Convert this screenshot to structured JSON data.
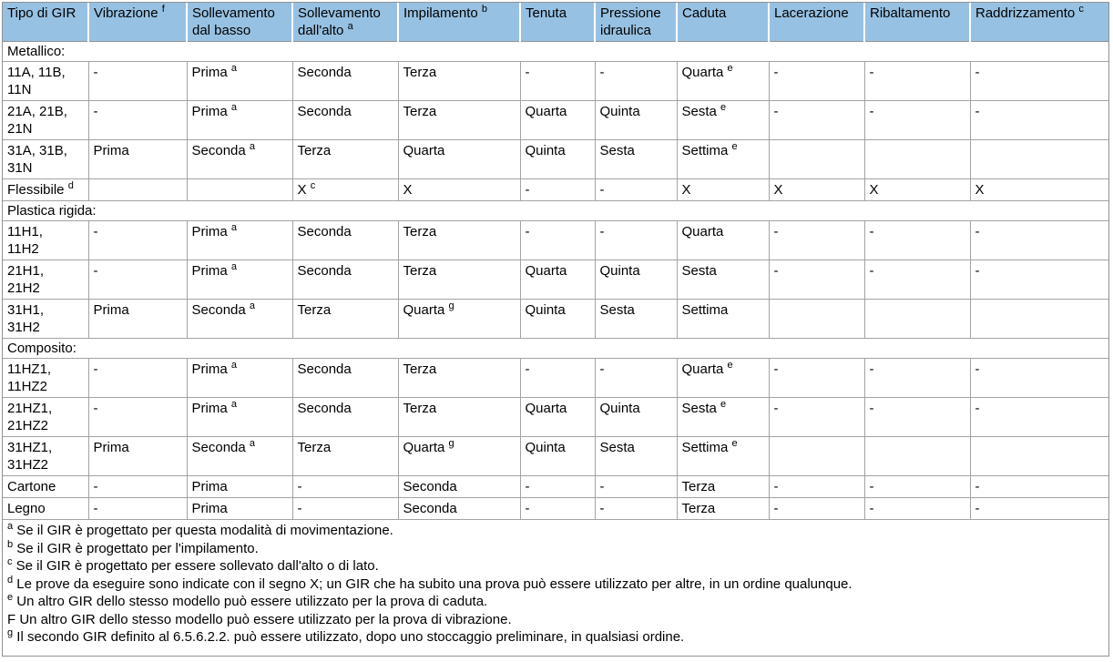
{
  "colors": {
    "header-bg": "#97c1e2",
    "border": "#a3a3a3",
    "frame": "#919191",
    "text": "#000000"
  },
  "table": {
    "columns": [
      {
        "label": "Tipo di GIR",
        "sup": ""
      },
      {
        "label": "Vibrazione",
        "sup": "f"
      },
      {
        "label": "Sollevamento dal basso",
        "sup": ""
      },
      {
        "label": "Sollevamento dall'alto",
        "sup": "a"
      },
      {
        "label": "Impilamento",
        "sup": "b"
      },
      {
        "label": "Tenuta",
        "sup": ""
      },
      {
        "label": "Pressione idraulica",
        "sup": ""
      },
      {
        "label": "Caduta",
        "sup": ""
      },
      {
        "label": "Lacerazione",
        "sup": ""
      },
      {
        "label": "Ribaltamento",
        "sup": ""
      },
      {
        "label": "Raddrizzamento",
        "sup": "c"
      }
    ],
    "rows": [
      {
        "type": "section",
        "label": "Metallico:"
      },
      {
        "type": "data",
        "cells": [
          "11A, 11B, 11N",
          "-",
          "Prima ^a",
          "Seconda",
          "Terza",
          "-",
          "-",
          "Quarta ^e",
          "-",
          "-",
          "-"
        ]
      },
      {
        "type": "data",
        "cells": [
          "21A, 21B, 21N",
          "-",
          "Prima ^a",
          "Seconda",
          "Terza",
          "Quarta",
          "Quinta",
          "Sesta ^e",
          "-",
          "-",
          "-"
        ]
      },
      {
        "type": "data",
        "cells": [
          "31A, 31B, 31N",
          "Prima",
          "Seconda ^a",
          "Terza",
          "Quarta",
          "Quinta",
          "Sesta",
          "Settima ^e",
          "",
          "",
          ""
        ]
      },
      {
        "type": "data",
        "cells": [
          "Flessibile ^d",
          "",
          "",
          "X ^c",
          "X",
          "-",
          "-",
          "X",
          "X",
          "X",
          "X"
        ]
      },
      {
        "type": "section",
        "label": "Plastica rigida:"
      },
      {
        "type": "data",
        "cells": [
          "11H1, 11H2",
          "-",
          "Prima ^a",
          "Seconda",
          "Terza",
          "-",
          "-",
          "Quarta",
          "-",
          "-",
          "-"
        ]
      },
      {
        "type": "data",
        "cells": [
          "21H1, 21H2",
          "-",
          "Prima ^a",
          "Seconda",
          "Terza",
          "Quarta",
          "Quinta",
          "Sesta",
          "-",
          "-",
          "-"
        ]
      },
      {
        "type": "data",
        "cells": [
          "31H1, 31H2",
          "Prima",
          "Seconda ^a",
          "Terza",
          "Quarta ^g",
          "Quinta",
          "Sesta",
          "Settima",
          "",
          "",
          ""
        ]
      },
      {
        "type": "section",
        "label": "Composito:"
      },
      {
        "type": "data",
        "cells": [
          "11HZ1, 11HZ2",
          "-",
          "Prima ^a",
          "Seconda",
          "Terza",
          "-",
          "-",
          "Quarta ^e",
          "-",
          "-",
          "-"
        ]
      },
      {
        "type": "data",
        "cells": [
          "21HZ1, 21HZ2",
          "-",
          "Prima ^a",
          "Seconda",
          "Terza",
          "Quarta",
          "Quinta",
          "Sesta ^e",
          "-",
          "-",
          "-"
        ]
      },
      {
        "type": "data",
        "cells": [
          "31HZ1, 31HZ2",
          "Prima",
          "Seconda ^a",
          "Terza",
          "Quarta ^g",
          "Quinta",
          "Sesta",
          "Settima ^e",
          "",
          "",
          ""
        ]
      },
      {
        "type": "data",
        "cells": [
          "Cartone",
          "-",
          "Prima",
          "-",
          "Seconda",
          "-",
          "-",
          "Terza",
          "-",
          "-",
          "-"
        ]
      },
      {
        "type": "data",
        "cells": [
          "Legno",
          "-",
          "Prima",
          "-",
          "Seconda",
          "-",
          "-",
          "Terza",
          "-",
          "-",
          "-"
        ]
      }
    ],
    "footnotes": [
      {
        "marker": "a",
        "superscript": true,
        "text": "Se il GIR è progettato per questa modalità di movimentazione."
      },
      {
        "marker": "b",
        "superscript": true,
        "text": "Se il GIR è progettato per l'impilamento."
      },
      {
        "marker": "c",
        "superscript": true,
        "text": "Se il GIR è progettato per essere sollevato dall'alto o di lato."
      },
      {
        "marker": "d",
        "superscript": true,
        "text": "Le prove da eseguire sono indicate con il segno X; un GIR che ha subito una prova può essere utilizzato per altre, in un ordine qualunque."
      },
      {
        "marker": "e",
        "superscript": true,
        "text": "Un altro GIR dello stesso modello può essere utilizzato per la prova di caduta."
      },
      {
        "marker": "F",
        "superscript": false,
        "text": "Un altro GIR dello stesso modello può essere utilizzato per la prova di vibrazione."
      },
      {
        "marker": "g",
        "superscript": true,
        "text": "Il secondo GIR definito al 6.5.6.2.2. può essere utilizzato, dopo uno stoccaggio preliminare, in qualsiasi ordine."
      }
    ]
  }
}
